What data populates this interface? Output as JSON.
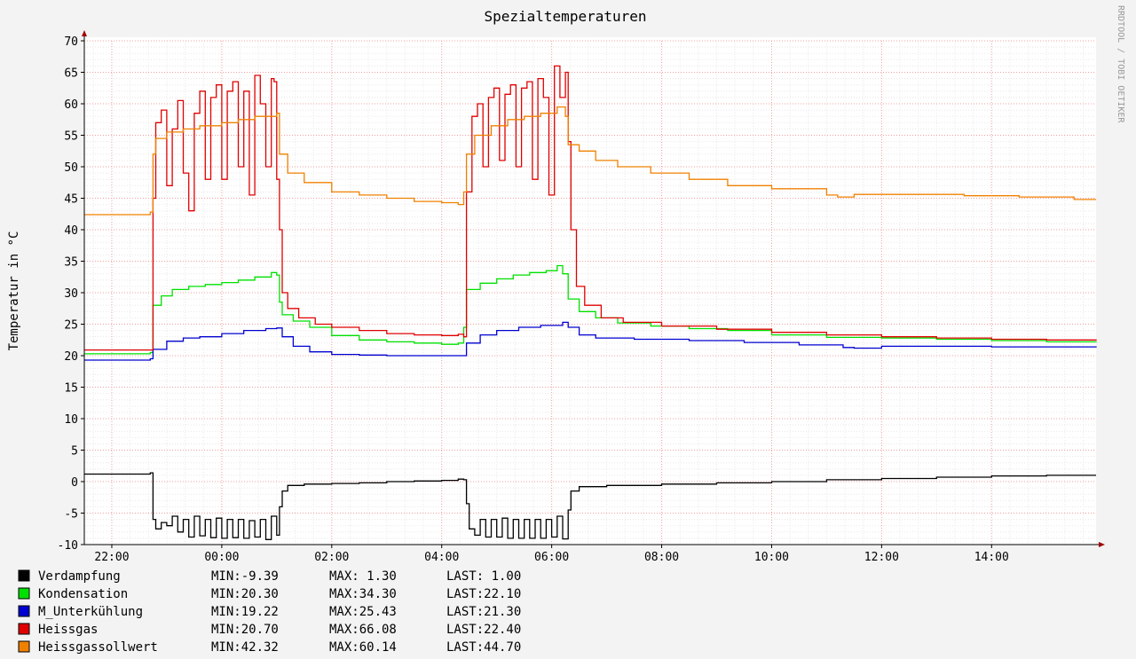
{
  "chart_data": {
    "type": "line",
    "title": "Spezialtemperaturen",
    "ylabel": "Temperatur in °C",
    "xlabel": "",
    "watermark": "RRDTOOL / TOBI OETIKER",
    "ylim": [
      -10,
      70
    ],
    "y_ticks": [
      -10,
      -5,
      0,
      5,
      10,
      15,
      20,
      25,
      30,
      35,
      40,
      45,
      50,
      55,
      60,
      65,
      70
    ],
    "x_range_hours": [
      21.5,
      39.9
    ],
    "x_ticks": [
      {
        "h": 22,
        "label": "22:00"
      },
      {
        "h": 24,
        "label": "00:00"
      },
      {
        "h": 26,
        "label": "02:00"
      },
      {
        "h": 28,
        "label": "04:00"
      },
      {
        "h": 30,
        "label": "06:00"
      },
      {
        "h": 32,
        "label": "08:00"
      },
      {
        "h": 34,
        "label": "10:00"
      },
      {
        "h": 36,
        "label": "12:00"
      },
      {
        "h": 38,
        "label": "14:00"
      }
    ],
    "grid": true,
    "series": [
      {
        "name": "Verdampfung",
        "color": "#000000",
        "min": "-9.39",
        "max": "1.30",
        "last": "1.00",
        "points": [
          [
            21.5,
            1.2
          ],
          [
            22.6,
            1.2
          ],
          [
            22.7,
            1.4
          ],
          [
            22.75,
            -6.0
          ],
          [
            22.8,
            -7.5
          ],
          [
            22.9,
            -6.5
          ],
          [
            23.0,
            -7.0
          ],
          [
            23.1,
            -5.5
          ],
          [
            23.2,
            -8.0
          ],
          [
            23.3,
            -6.0
          ],
          [
            23.4,
            -8.8
          ],
          [
            23.5,
            -5.5
          ],
          [
            23.6,
            -8.6
          ],
          [
            23.7,
            -6.0
          ],
          [
            23.8,
            -8.9
          ],
          [
            23.9,
            -5.8
          ],
          [
            24.0,
            -9.0
          ],
          [
            24.1,
            -6.0
          ],
          [
            24.2,
            -8.9
          ],
          [
            24.3,
            -6.0
          ],
          [
            24.4,
            -9.0
          ],
          [
            24.5,
            -6.2
          ],
          [
            24.6,
            -8.8
          ],
          [
            24.7,
            -6.0
          ],
          [
            24.8,
            -9.2
          ],
          [
            24.9,
            -5.5
          ],
          [
            25.0,
            -8.5
          ],
          [
            25.05,
            -4.0
          ],
          [
            25.1,
            -1.5
          ],
          [
            25.2,
            -0.6
          ],
          [
            25.5,
            -0.4
          ],
          [
            26.0,
            -0.3
          ],
          [
            26.5,
            -0.2
          ],
          [
            27.0,
            0.0
          ],
          [
            27.5,
            0.1
          ],
          [
            28.0,
            0.2
          ],
          [
            28.3,
            0.4
          ],
          [
            28.4,
            0.3
          ],
          [
            28.45,
            -3.5
          ],
          [
            28.5,
            -7.5
          ],
          [
            28.6,
            -8.5
          ],
          [
            28.7,
            -6.0
          ],
          [
            28.8,
            -8.8
          ],
          [
            28.9,
            -6.0
          ],
          [
            29.0,
            -8.8
          ],
          [
            29.1,
            -5.8
          ],
          [
            29.2,
            -9.0
          ],
          [
            29.3,
            -6.0
          ],
          [
            29.4,
            -9.0
          ],
          [
            29.5,
            -6.0
          ],
          [
            29.6,
            -9.0
          ],
          [
            29.7,
            -6.0
          ],
          [
            29.8,
            -9.0
          ],
          [
            29.9,
            -6.0
          ],
          [
            30.0,
            -8.8
          ],
          [
            30.1,
            -5.5
          ],
          [
            30.2,
            -9.1
          ],
          [
            30.3,
            -4.5
          ],
          [
            30.35,
            -1.5
          ],
          [
            30.5,
            -0.8
          ],
          [
            31.0,
            -0.6
          ],
          [
            32.0,
            -0.4
          ],
          [
            33.0,
            -0.2
          ],
          [
            34.0,
            0.0
          ],
          [
            35.0,
            0.3
          ],
          [
            36.0,
            0.5
          ],
          [
            37.0,
            0.7
          ],
          [
            38.0,
            0.9
          ],
          [
            39.0,
            1.0
          ],
          [
            39.9,
            1.0
          ]
        ]
      },
      {
        "name": "Kondensation",
        "color": "#00e000",
        "min": "20.30",
        "max": "34.30",
        "last": "22.10",
        "points": [
          [
            21.5,
            20.3
          ],
          [
            22.7,
            20.5
          ],
          [
            22.75,
            28.0
          ],
          [
            22.9,
            29.5
          ],
          [
            23.1,
            30.5
          ],
          [
            23.4,
            31.0
          ],
          [
            23.7,
            31.3
          ],
          [
            24.0,
            31.6
          ],
          [
            24.3,
            32.0
          ],
          [
            24.6,
            32.5
          ],
          [
            24.9,
            33.2
          ],
          [
            25.0,
            32.8
          ],
          [
            25.05,
            28.5
          ],
          [
            25.1,
            26.5
          ],
          [
            25.3,
            25.5
          ],
          [
            25.6,
            24.5
          ],
          [
            26.0,
            23.2
          ],
          [
            26.5,
            22.5
          ],
          [
            27.0,
            22.2
          ],
          [
            27.5,
            22.0
          ],
          [
            28.0,
            21.8
          ],
          [
            28.3,
            22.0
          ],
          [
            28.4,
            24.5
          ],
          [
            28.45,
            30.5
          ],
          [
            28.7,
            31.5
          ],
          [
            29.0,
            32.2
          ],
          [
            29.3,
            32.8
          ],
          [
            29.6,
            33.2
          ],
          [
            29.9,
            33.5
          ],
          [
            30.1,
            34.3
          ],
          [
            30.2,
            33.0
          ],
          [
            30.3,
            29.0
          ],
          [
            30.5,
            27.0
          ],
          [
            30.8,
            26.0
          ],
          [
            31.2,
            25.2
          ],
          [
            31.8,
            24.7
          ],
          [
            32.5,
            24.3
          ],
          [
            33.2,
            24.0
          ],
          [
            34.0,
            23.3
          ],
          [
            35.0,
            22.9
          ],
          [
            36.0,
            22.8
          ],
          [
            37.0,
            22.6
          ],
          [
            38.0,
            22.4
          ],
          [
            39.0,
            22.2
          ],
          [
            39.9,
            22.1
          ]
        ]
      },
      {
        "name": "M_Unterkühlung",
        "color": "#0000d0",
        "min": "19.22",
        "max": "25.43",
        "last": "21.30",
        "points": [
          [
            21.5,
            19.3
          ],
          [
            22.7,
            19.5
          ],
          [
            22.75,
            21.0
          ],
          [
            23.0,
            22.3
          ],
          [
            23.3,
            22.8
          ],
          [
            23.6,
            23.0
          ],
          [
            24.0,
            23.5
          ],
          [
            24.4,
            24.0
          ],
          [
            24.8,
            24.3
          ],
          [
            25.0,
            24.4
          ],
          [
            25.1,
            23.0
          ],
          [
            25.3,
            21.5
          ],
          [
            25.6,
            20.6
          ],
          [
            26.0,
            20.2
          ],
          [
            26.5,
            20.1
          ],
          [
            27.0,
            20.0
          ],
          [
            28.0,
            20.0
          ],
          [
            28.4,
            20.0
          ],
          [
            28.45,
            22.0
          ],
          [
            28.7,
            23.3
          ],
          [
            29.0,
            24.0
          ],
          [
            29.4,
            24.5
          ],
          [
            29.8,
            24.8
          ],
          [
            30.2,
            25.3
          ],
          [
            30.3,
            24.5
          ],
          [
            30.5,
            23.3
          ],
          [
            30.8,
            22.8
          ],
          [
            31.5,
            22.6
          ],
          [
            32.5,
            22.4
          ],
          [
            33.5,
            22.1
          ],
          [
            34.5,
            21.7
          ],
          [
            35.3,
            21.3
          ],
          [
            35.5,
            21.2
          ],
          [
            36.0,
            21.5
          ],
          [
            37.0,
            21.5
          ],
          [
            38.0,
            21.4
          ],
          [
            39.0,
            21.4
          ],
          [
            39.9,
            21.3
          ]
        ]
      },
      {
        "name": "Heissgas",
        "color": "#e00000",
        "min": "20.70",
        "max": "66.08",
        "last": "22.40",
        "points": [
          [
            21.5,
            20.9
          ],
          [
            22.7,
            20.9
          ],
          [
            22.75,
            45.0
          ],
          [
            22.8,
            57.0
          ],
          [
            22.9,
            59.0
          ],
          [
            23.0,
            47.0
          ],
          [
            23.1,
            56.0
          ],
          [
            23.2,
            60.5
          ],
          [
            23.3,
            49.0
          ],
          [
            23.4,
            43.0
          ],
          [
            23.5,
            58.5
          ],
          [
            23.6,
            62.0
          ],
          [
            23.7,
            48.0
          ],
          [
            23.8,
            61.0
          ],
          [
            23.9,
            63.0
          ],
          [
            24.0,
            48.0
          ],
          [
            24.1,
            62.0
          ],
          [
            24.2,
            63.5
          ],
          [
            24.3,
            50.0
          ],
          [
            24.4,
            62.0
          ],
          [
            24.5,
            45.5
          ],
          [
            24.6,
            64.5
          ],
          [
            24.7,
            60.0
          ],
          [
            24.8,
            50.0
          ],
          [
            24.9,
            64.0
          ],
          [
            24.95,
            63.5
          ],
          [
            25.0,
            48.0
          ],
          [
            25.05,
            40.0
          ],
          [
            25.1,
            30.0
          ],
          [
            25.2,
            27.5
          ],
          [
            25.4,
            26.0
          ],
          [
            25.7,
            25.0
          ],
          [
            26.0,
            24.5
          ],
          [
            26.5,
            24.0
          ],
          [
            27.0,
            23.5
          ],
          [
            27.5,
            23.3
          ],
          [
            28.0,
            23.2
          ],
          [
            28.3,
            23.4
          ],
          [
            28.4,
            23.0
          ],
          [
            28.45,
            46.0
          ],
          [
            28.55,
            58.0
          ],
          [
            28.65,
            60.0
          ],
          [
            28.75,
            50.0
          ],
          [
            28.85,
            61.0
          ],
          [
            28.95,
            62.5
          ],
          [
            29.05,
            51.0
          ],
          [
            29.15,
            61.5
          ],
          [
            29.25,
            63.0
          ],
          [
            29.35,
            50.0
          ],
          [
            29.45,
            62.5
          ],
          [
            29.55,
            63.5
          ],
          [
            29.65,
            48.0
          ],
          [
            29.75,
            64.0
          ],
          [
            29.85,
            61.0
          ],
          [
            29.95,
            45.5
          ],
          [
            30.05,
            66.0
          ],
          [
            30.15,
            61.0
          ],
          [
            30.25,
            65.0
          ],
          [
            30.3,
            54.0
          ],
          [
            30.35,
            40.0
          ],
          [
            30.45,
            31.0
          ],
          [
            30.6,
            28.0
          ],
          [
            30.9,
            26.0
          ],
          [
            31.3,
            25.3
          ],
          [
            32.0,
            24.7
          ],
          [
            33.0,
            24.2
          ],
          [
            34.0,
            23.7
          ],
          [
            35.0,
            23.3
          ],
          [
            36.0,
            23.0
          ],
          [
            37.0,
            22.8
          ],
          [
            38.0,
            22.6
          ],
          [
            39.0,
            22.5
          ],
          [
            39.9,
            22.4
          ]
        ]
      },
      {
        "name": "Heissgassollwert",
        "color": "#f08000",
        "min": "42.32",
        "max": "60.14",
        "last": "44.70",
        "points": [
          [
            21.5,
            42.4
          ],
          [
            22.7,
            42.8
          ],
          [
            22.75,
            52.0
          ],
          [
            22.8,
            54.5
          ],
          [
            23.0,
            55.5
          ],
          [
            23.3,
            56.0
          ],
          [
            23.6,
            56.5
          ],
          [
            24.0,
            57.0
          ],
          [
            24.3,
            57.5
          ],
          [
            24.6,
            58.0
          ],
          [
            25.0,
            58.5
          ],
          [
            25.05,
            52.0
          ],
          [
            25.2,
            49.0
          ],
          [
            25.5,
            47.5
          ],
          [
            26.0,
            46.0
          ],
          [
            26.5,
            45.5
          ],
          [
            27.0,
            45.0
          ],
          [
            27.5,
            44.5
          ],
          [
            28.0,
            44.3
          ],
          [
            28.3,
            44.0
          ],
          [
            28.4,
            46.0
          ],
          [
            28.45,
            52.0
          ],
          [
            28.6,
            55.0
          ],
          [
            28.9,
            56.5
          ],
          [
            29.2,
            57.5
          ],
          [
            29.5,
            58.0
          ],
          [
            29.8,
            58.5
          ],
          [
            30.1,
            59.5
          ],
          [
            30.25,
            58.0
          ],
          [
            30.3,
            53.5
          ],
          [
            30.5,
            52.5
          ],
          [
            30.8,
            51.0
          ],
          [
            31.2,
            50.0
          ],
          [
            31.8,
            49.0
          ],
          [
            32.5,
            48.0
          ],
          [
            33.2,
            47.0
          ],
          [
            34.0,
            46.5
          ],
          [
            35.0,
            45.5
          ],
          [
            35.2,
            45.2
          ],
          [
            35.5,
            45.6
          ],
          [
            36.5,
            45.6
          ],
          [
            37.5,
            45.4
          ],
          [
            38.5,
            45.2
          ],
          [
            39.5,
            44.8
          ],
          [
            39.9,
            44.8
          ]
        ]
      }
    ]
  }
}
